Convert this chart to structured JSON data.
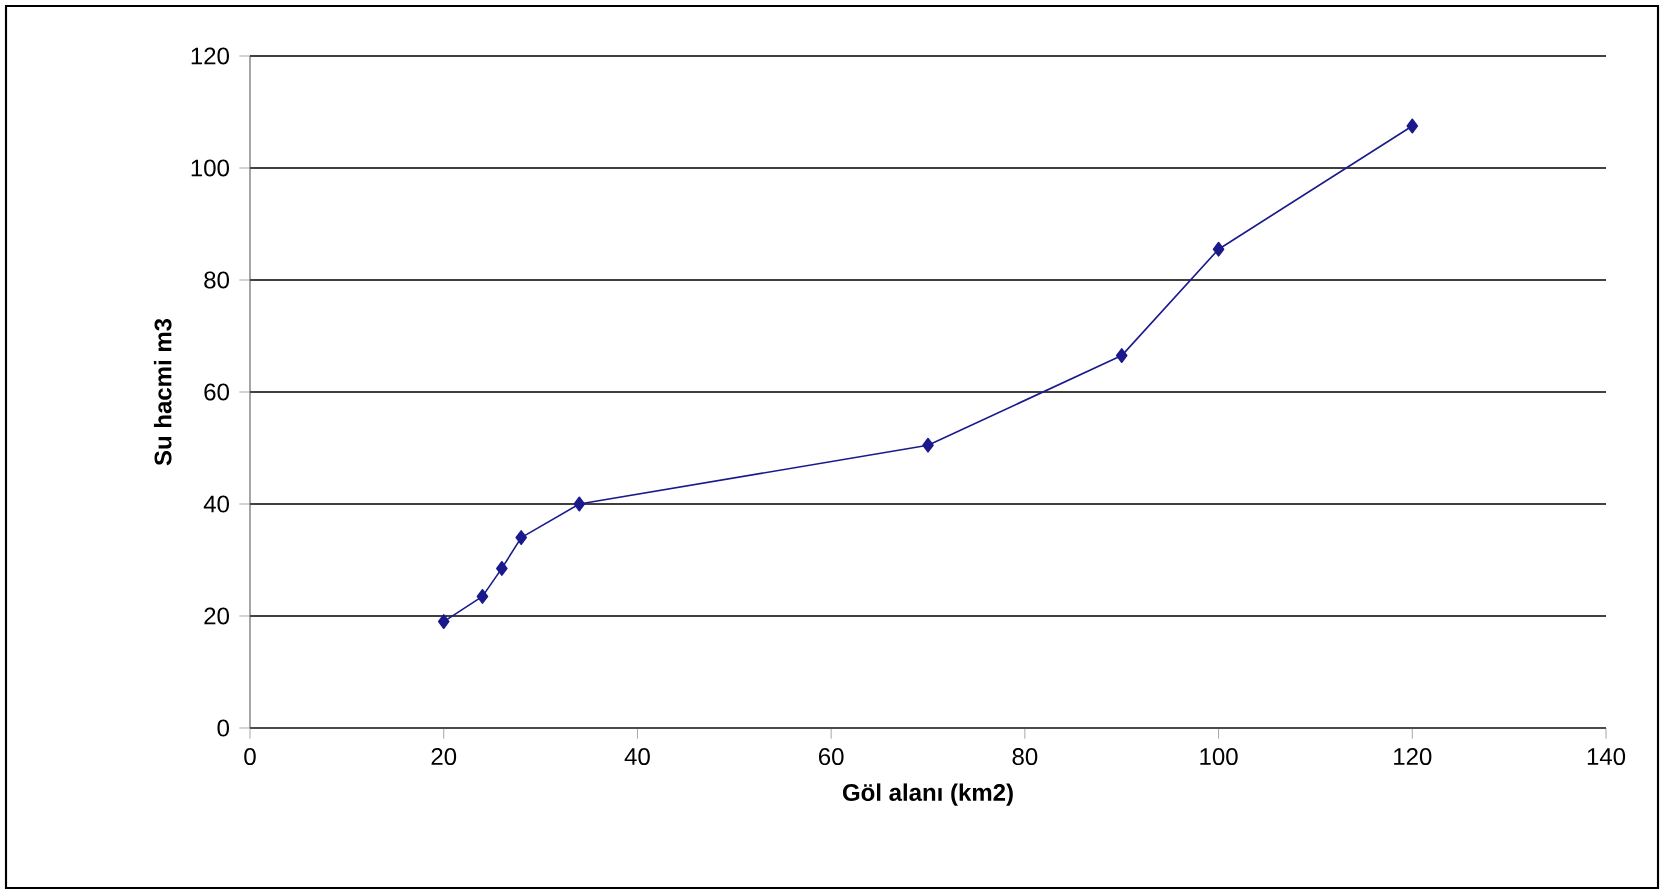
{
  "chart_data": {
    "type": "line",
    "xlabel": "Göl alanı (km2)",
    "ylabel": "Su hacmi m3",
    "x": [
      20,
      24,
      26,
      28,
      34,
      70,
      90,
      100,
      120
    ],
    "series": [
      {
        "color": "#1a1a8c",
        "values": [
          19,
          23.5,
          28.5,
          34,
          40,
          50.5,
          66.5,
          85.5,
          107.5
        ]
      }
    ],
    "xlim": [
      0,
      140
    ],
    "xticks": [
      0,
      20,
      40,
      60,
      80,
      100,
      120,
      140
    ],
    "ylim": [
      0,
      120
    ],
    "yticks": [
      0,
      20,
      40,
      60,
      80,
      100,
      120
    ],
    "grid": "y",
    "marker": "diamond",
    "line_style": "solid"
  }
}
